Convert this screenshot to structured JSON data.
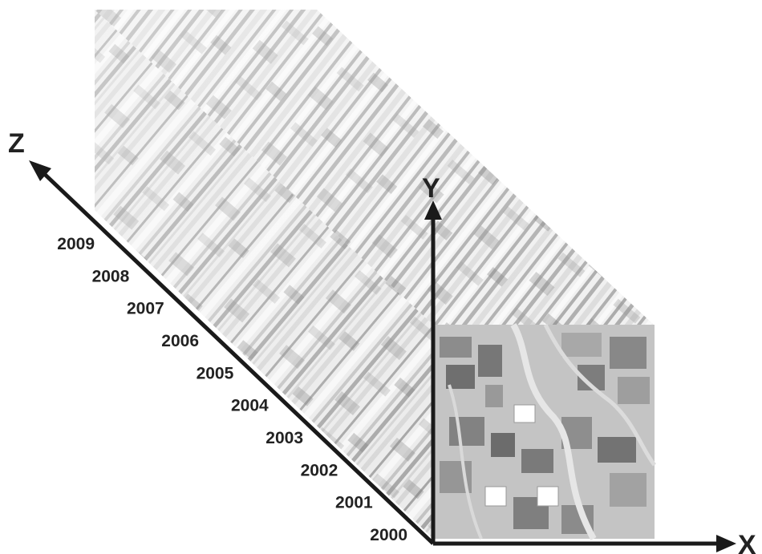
{
  "axes": {
    "x_label": "X",
    "y_label": "Y",
    "z_label": "Z"
  },
  "years": [
    "2000",
    "2001",
    "2002",
    "2003",
    "2004",
    "2005",
    "2006",
    "2007",
    "2008",
    "2009"
  ],
  "colors": {
    "axis": "#1a1a1a",
    "text": "#222222",
    "cube_light": "#ececec",
    "cube_mid": "#bdbdbd",
    "cube_dark": "#6a6a6a"
  }
}
